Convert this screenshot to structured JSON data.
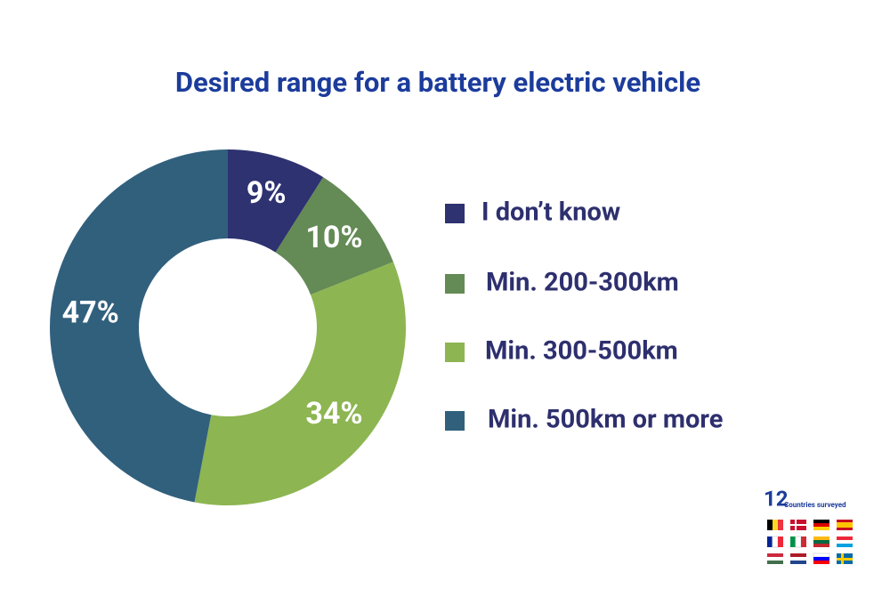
{
  "chart_data": {
    "type": "pie",
    "title": "Desired range for a battery electric vehicle",
    "categories": [
      "I don’t know",
      "Min. 200-300km",
      "Min. 300-500km",
      "Min. 500km or more"
    ],
    "values": [
      9,
      10,
      34,
      47
    ],
    "value_labels": [
      "9%",
      "10%",
      "34%",
      "47%"
    ],
    "colors": [
      "#2e3270",
      "#648a55",
      "#8db552",
      "#31607d"
    ],
    "donut": true,
    "legend": "right",
    "countries_count": 12,
    "countries_text": "Countries surveyed"
  }
}
